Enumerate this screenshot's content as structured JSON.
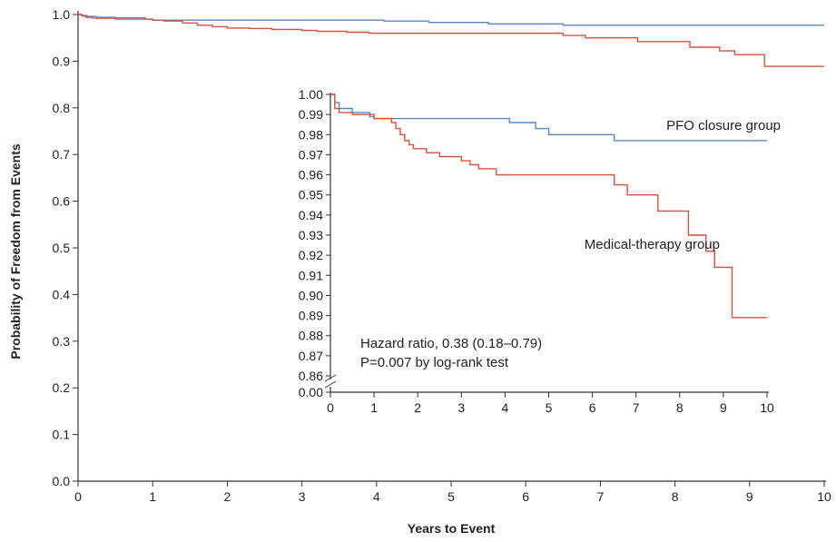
{
  "chart_data": [
    {
      "type": "line",
      "xlabel": "Years to Event",
      "ylabel": "Probability of Freedom from Events",
      "xlim": [
        0,
        10
      ],
      "ylim": [
        0,
        1
      ],
      "x_ticks": [
        "0",
        "1",
        "2",
        "3",
        "4",
        "5",
        "6",
        "7",
        "8",
        "9",
        "10"
      ],
      "y_ticks": [
        "0.0",
        "0.1",
        "0.2",
        "0.3",
        "0.4",
        "0.5",
        "0.6",
        "0.7",
        "0.8",
        "0.9",
        "1.0"
      ],
      "series": [
        {
          "color": "#5b87c5",
          "step": true,
          "points": [
            [
              0,
              1.0
            ],
            [
              0.05,
              0.998
            ],
            [
              0.12,
              0.996
            ],
            [
              0.25,
              0.994
            ],
            [
              0.5,
              0.993
            ],
            [
              0.9,
              0.99
            ],
            [
              1.0,
              0.988
            ],
            [
              3.8,
              0.988
            ],
            [
              4.1,
              0.986
            ],
            [
              4.7,
              0.983
            ],
            [
              5.5,
              0.98
            ],
            [
              6.5,
              0.977
            ],
            [
              10,
              0.977
            ]
          ]
        },
        {
          "color": "#d9503f",
          "step": true,
          "points": [
            [
              0,
              1.0
            ],
            [
              0.05,
              0.997
            ],
            [
              0.1,
              0.994
            ],
            [
              0.2,
              0.992
            ],
            [
              0.5,
              0.99
            ],
            [
              1.0,
              0.988
            ],
            [
              1.15,
              0.986
            ],
            [
              1.4,
              0.982
            ],
            [
              1.6,
              0.977
            ],
            [
              1.8,
              0.974
            ],
            [
              2.0,
              0.971
            ],
            [
              2.3,
              0.97
            ],
            [
              2.6,
              0.968
            ],
            [
              3.0,
              0.966
            ],
            [
              3.2,
              0.964
            ],
            [
              3.6,
              0.962
            ],
            [
              3.9,
              0.96
            ],
            [
              6.2,
              0.96
            ],
            [
              6.5,
              0.955
            ],
            [
              6.8,
              0.95
            ],
            [
              7.5,
              0.942
            ],
            [
              8.2,
              0.93
            ],
            [
              8.6,
              0.922
            ],
            [
              8.8,
              0.914
            ],
            [
              9.2,
              0.889
            ],
            [
              10,
              0.889
            ]
          ]
        }
      ]
    },
    {
      "type": "line",
      "inset": true,
      "xlim": [
        0,
        10
      ],
      "ylim": [
        0.86,
        1.0
      ],
      "y_break": true,
      "x_ticks": [
        "0",
        "1",
        "2",
        "3",
        "4",
        "5",
        "6",
        "7",
        "8",
        "9",
        "10"
      ],
      "y_ticks": [
        "0.00",
        "0.86",
        "0.87",
        "0.88",
        "0.89",
        "0.90",
        "0.91",
        "0.92",
        "0.93",
        "0.94",
        "0.95",
        "0.96",
        "0.97",
        "0.98",
        "0.99",
        "1.00"
      ],
      "annotation": [
        "Hazard ratio, 0.38 (0.18–0.79)",
        "P=0.007 by log-rank test"
      ],
      "series": [
        {
          "name": "PFO closure group",
          "color": "#5b87c5",
          "step": true,
          "points": [
            [
              0,
              1.0
            ],
            [
              0.1,
              0.996
            ],
            [
              0.2,
              0.993
            ],
            [
              0.5,
              0.991
            ],
            [
              0.9,
              0.989
            ],
            [
              1.0,
              0.988
            ],
            [
              3.8,
              0.988
            ],
            [
              4.1,
              0.986
            ],
            [
              4.7,
              0.983
            ],
            [
              5.0,
              0.98
            ],
            [
              5.5,
              0.98
            ],
            [
              6.5,
              0.977
            ],
            [
              10,
              0.977
            ]
          ]
        },
        {
          "name": "Medical-therapy group",
          "color": "#d9503f",
          "step": true,
          "points": [
            [
              0,
              1.0
            ],
            [
              0.1,
              0.993
            ],
            [
              0.2,
              0.991
            ],
            [
              0.5,
              0.99
            ],
            [
              1.0,
              0.988
            ],
            [
              1.4,
              0.986
            ],
            [
              1.5,
              0.983
            ],
            [
              1.6,
              0.98
            ],
            [
              1.7,
              0.977
            ],
            [
              1.8,
              0.975
            ],
            [
              1.9,
              0.973
            ],
            [
              2.2,
              0.971
            ],
            [
              2.5,
              0.969
            ],
            [
              3.0,
              0.967
            ],
            [
              3.2,
              0.965
            ],
            [
              3.4,
              0.963
            ],
            [
              3.8,
              0.96
            ],
            [
              6.2,
              0.96
            ],
            [
              6.5,
              0.955
            ],
            [
              6.8,
              0.95
            ],
            [
              7.5,
              0.942
            ],
            [
              8.2,
              0.93
            ],
            [
              8.6,
              0.922
            ],
            [
              8.8,
              0.914
            ],
            [
              9.2,
              0.889
            ],
            [
              10,
              0.889
            ]
          ]
        }
      ]
    }
  ]
}
